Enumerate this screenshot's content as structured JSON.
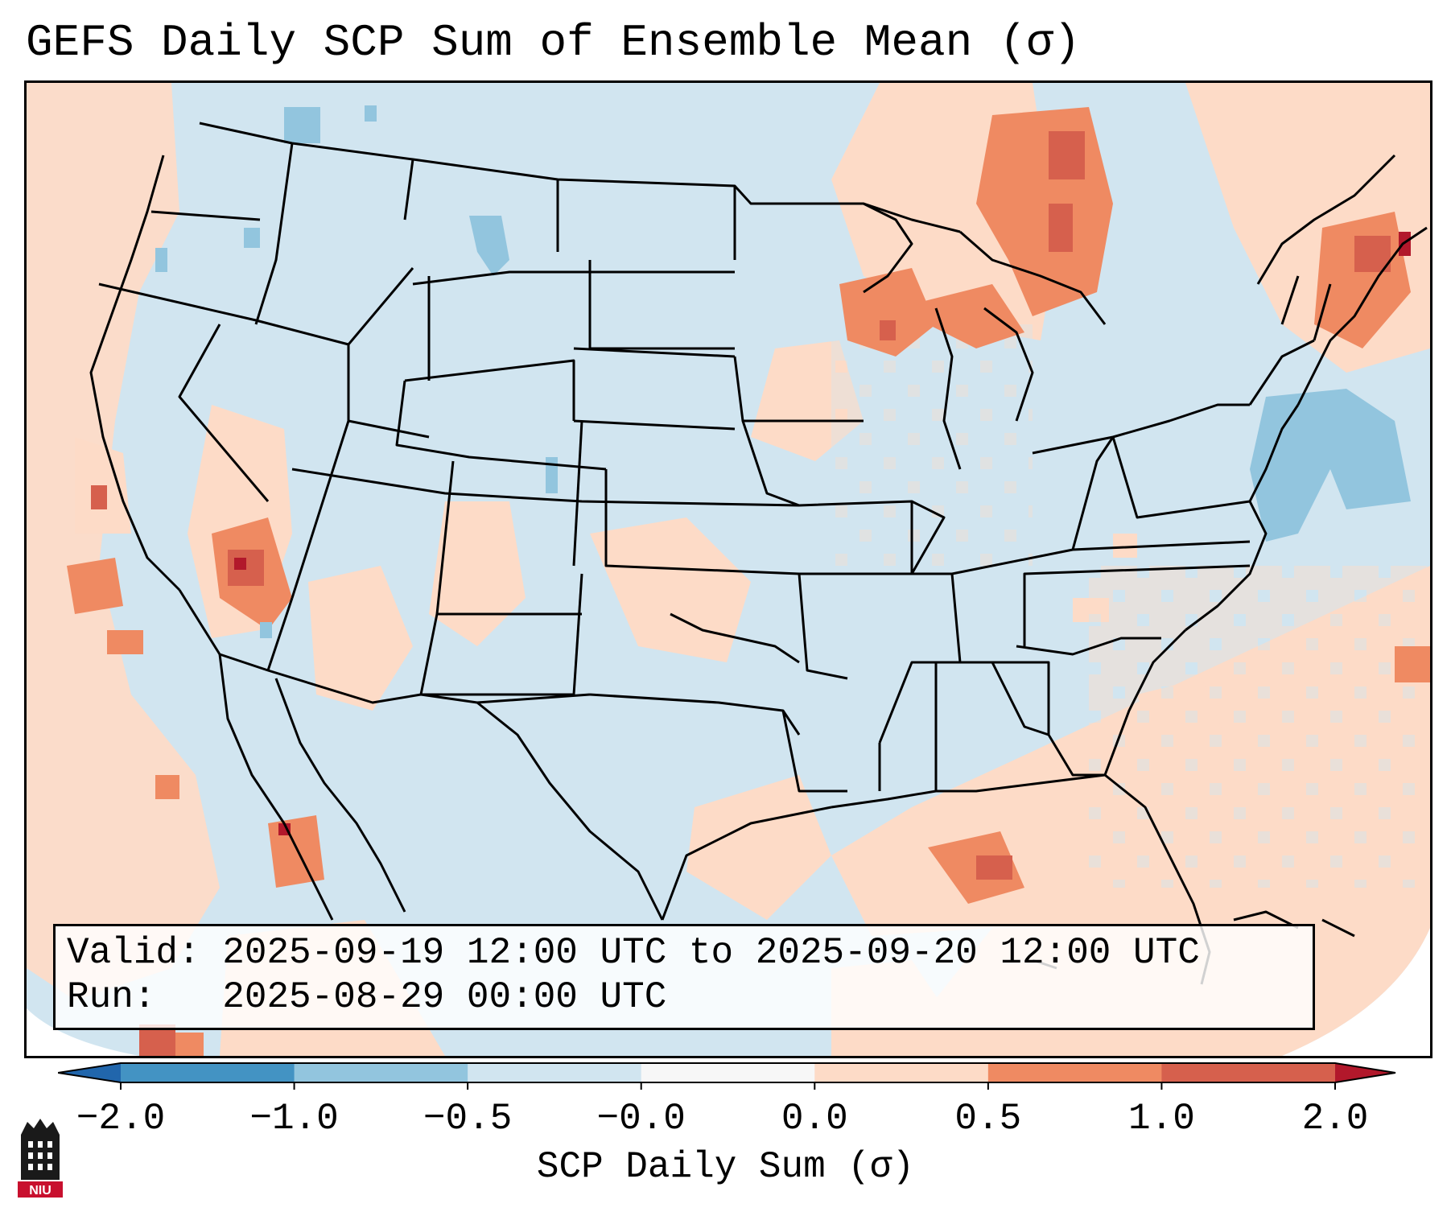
{
  "title": "GEFS Daily SCP Sum of Ensemble Mean (σ)",
  "info": {
    "valid_line": "Valid: 2025-09-19 12:00 UTC to 2025-09-20 12:00 UTC",
    "run_line": "Run:   2025-08-29 00:00 UTC"
  },
  "colorbar": {
    "label": "SCP Daily Sum (σ)",
    "ticks": [
      "−2.0",
      "−1.0",
      "−0.5",
      "−0.0",
      "0.0",
      "0.5",
      "1.0",
      "2.0"
    ],
    "bins": [
      {
        "value": -1.5,
        "color": "#4393c3"
      },
      {
        "value": -0.75,
        "color": "#92c5de"
      },
      {
        "value": -0.25,
        "color": "#d1e5f0"
      },
      {
        "value": 0.0,
        "color": "#f7f7f7"
      },
      {
        "value": 0.25,
        "color": "#fddbc7"
      },
      {
        "value": 0.75,
        "color": "#ef8a62"
      },
      {
        "value": 1.5,
        "color": "#d6604d"
      }
    ],
    "under_color": "#2166ac",
    "over_color": "#b2182b"
  },
  "logo": {
    "text": "NIU"
  },
  "colors": {
    "neg_low": "#d1e5f0",
    "neg_mid": "#92c5de",
    "pos_low": "#fddbc7",
    "pos_mid": "#ef8a62",
    "pos_high": "#d6604d",
    "pos_max": "#b2182b"
  }
}
